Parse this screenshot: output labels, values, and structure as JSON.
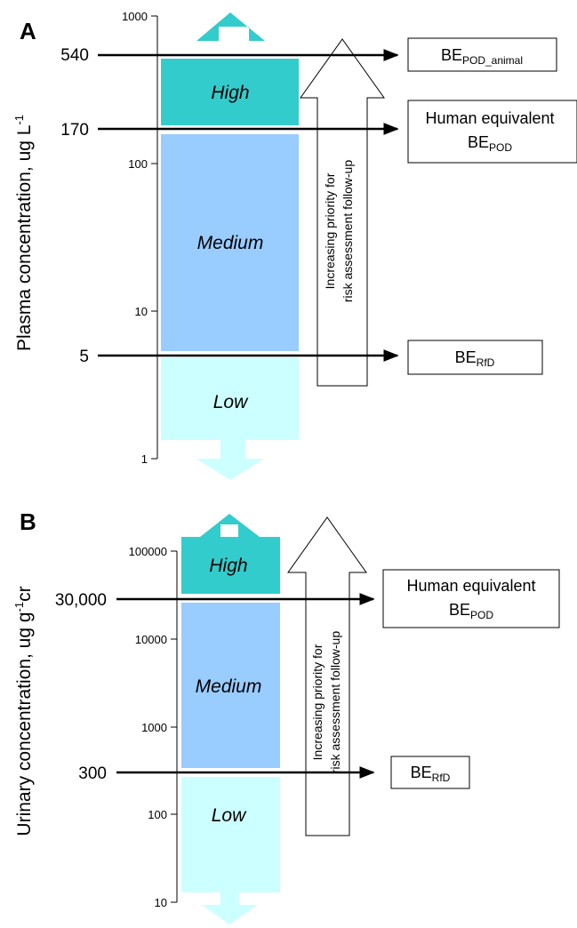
{
  "colors": {
    "high": "#33cccc",
    "medium": "#99ccff",
    "low": "#ccffff",
    "line": "#000000"
  },
  "panel_a": {
    "letter": "A",
    "ylabel": "Plasma concentration, ug L",
    "ylabel_sup": "-1",
    "ticks": [
      "1000",
      "100",
      "10",
      "1"
    ],
    "markers": [
      "540",
      "170",
      "5"
    ],
    "bands": {
      "high": "High",
      "medium": "Medium",
      "low": "Low"
    },
    "priority_text": [
      "Increasing priority for",
      "risk assessment follow-up"
    ],
    "boxes": {
      "pod_animal": {
        "main": "BE",
        "sub": "POD_animal"
      },
      "pod_human": {
        "line1": "Human equivalent",
        "main": "BE",
        "sub": "POD"
      },
      "rfd": {
        "main": "BE",
        "sub": "RfD"
      }
    }
  },
  "panel_b": {
    "letter": "B",
    "ylabel": "Urinary concentration, ug g",
    "ylabel_sup": "-1",
    "ylabel_tail": "cr",
    "ticks": [
      "100000",
      "10000",
      "1000",
      "100",
      "10"
    ],
    "markers": [
      "30,000",
      "300"
    ],
    "bands": {
      "high": "High",
      "medium": "Medium",
      "low": "Low"
    },
    "priority_text": [
      "Increasing priority for",
      "risk assessment follow-up"
    ],
    "boxes": {
      "pod_human": {
        "line1": "Human equivalent",
        "main": "BE",
        "sub": "POD"
      },
      "rfd": {
        "main": "BE",
        "sub": "RfD"
      }
    }
  }
}
